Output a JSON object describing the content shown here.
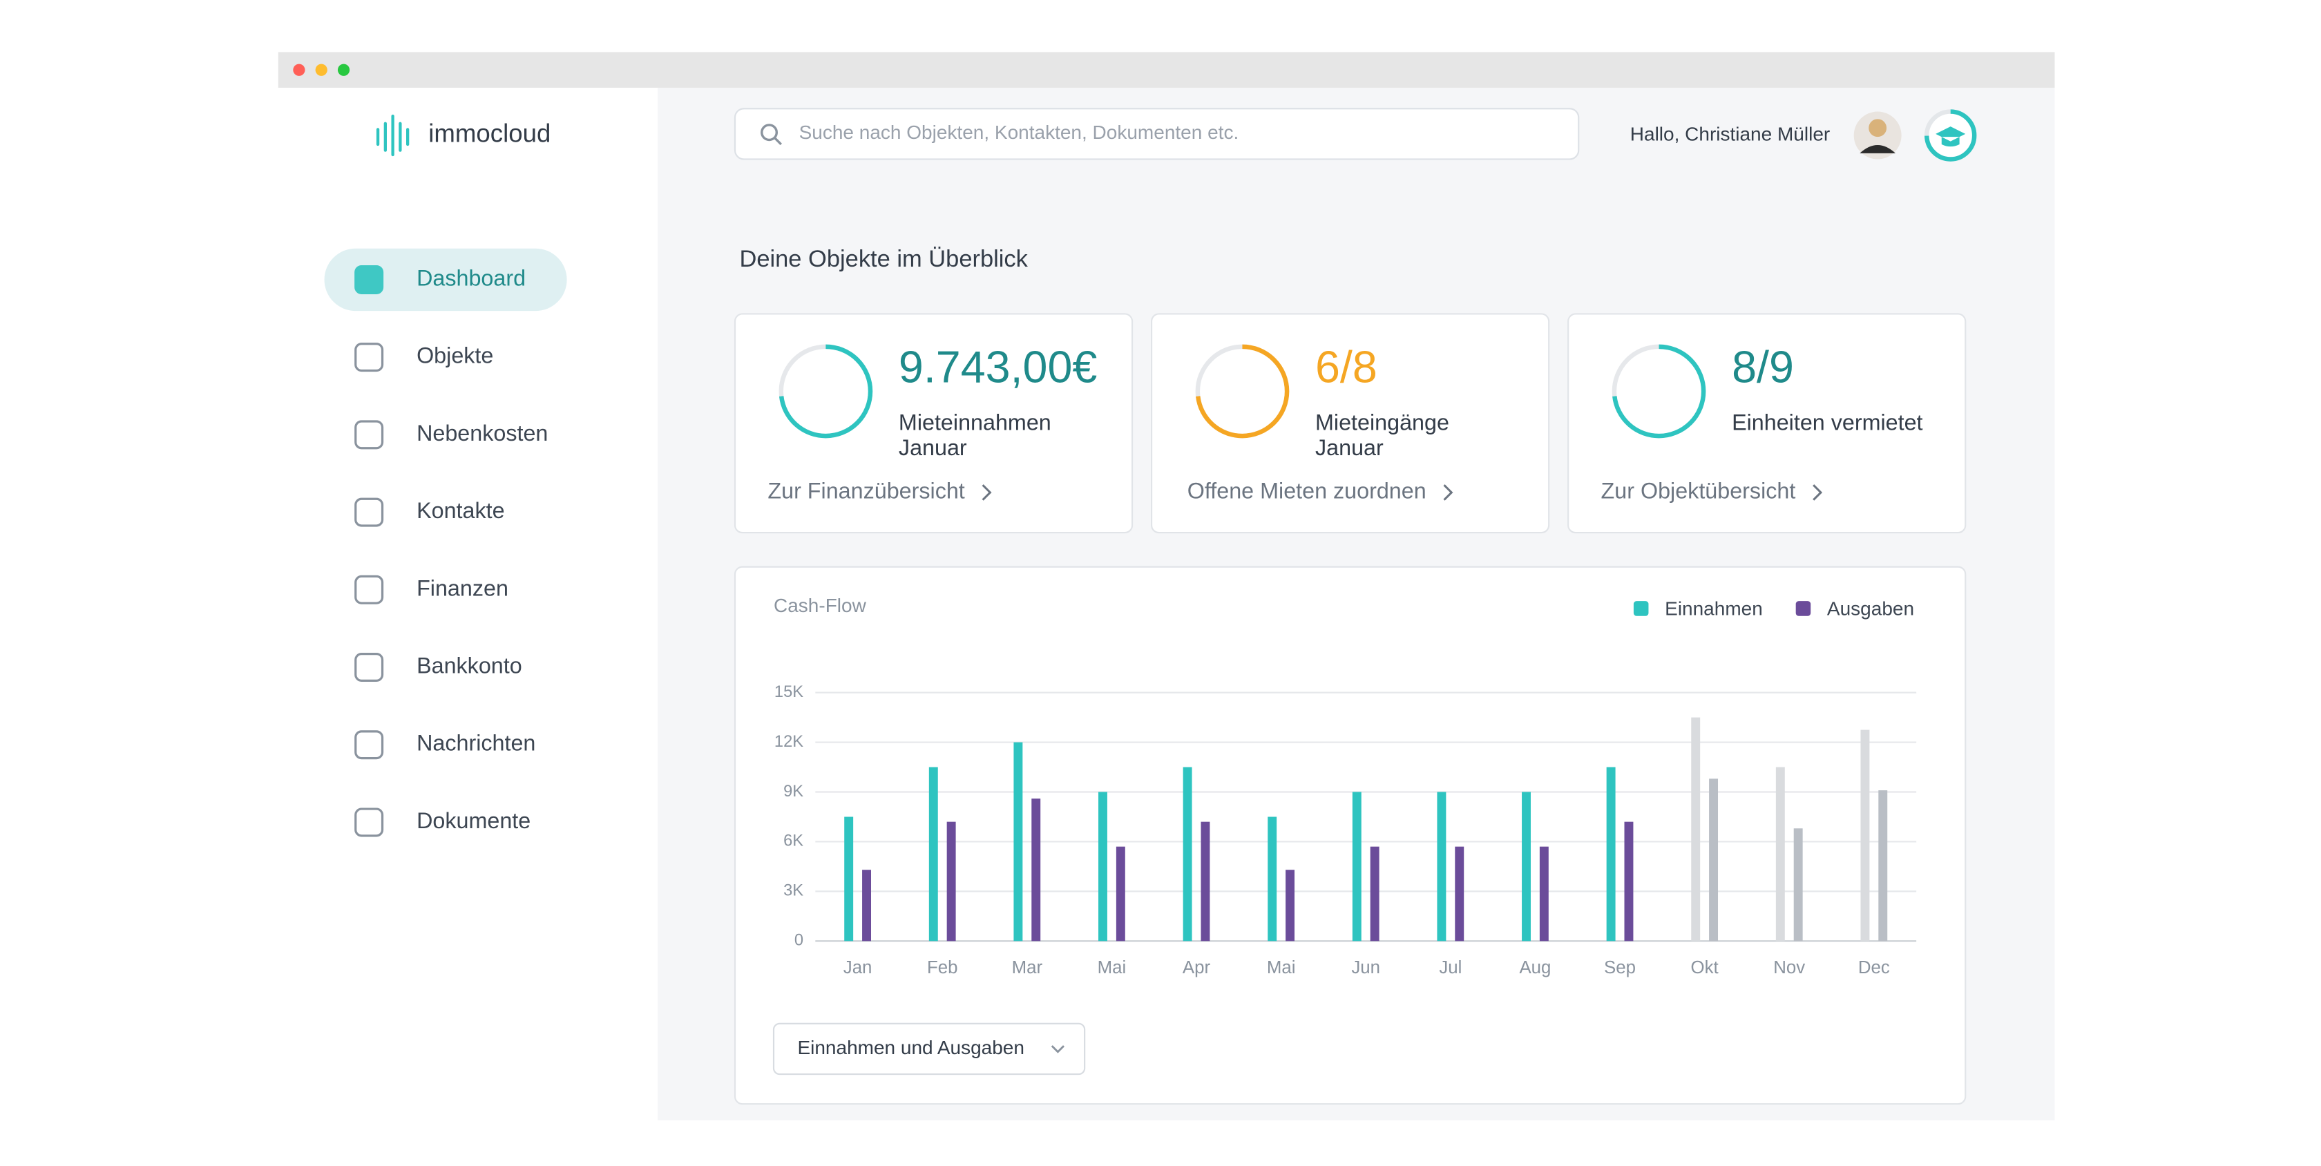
{
  "window": {
    "app_name": "immocloud",
    "search_placeholder": "Suche nach Objekten, Kontakten, Dokumenten etc.",
    "greeting": "Hallo, Christiane Müller"
  },
  "nav": [
    {
      "label": "Dashboard",
      "active": true
    },
    {
      "label": "Objekte",
      "active": false
    },
    {
      "label": "Nebenkosten",
      "active": false
    },
    {
      "label": "Kontakte",
      "active": false
    },
    {
      "label": "Finanzen",
      "active": false
    },
    {
      "label": "Bankkonto",
      "active": false
    },
    {
      "label": "Nachrichten",
      "active": false
    },
    {
      "label": "Dokumente",
      "active": false
    }
  ],
  "heading": "Deine Objekte im Überblick",
  "cards": [
    {
      "value": "9.743,00€",
      "value_color": "#1f8a8a",
      "ring_color": "#2ec4c0",
      "label_lines": [
        "Mieteinnahmen",
        "Januar"
      ],
      "link": "Zur Finanzübersicht"
    },
    {
      "value": "6/8",
      "value_color": "#f5a623",
      "ring_color": "#f5a623",
      "label_lines": [
        "Mieteingänge",
        "Januar"
      ],
      "link": "Offene Mieten zuordnen"
    },
    {
      "value": "8/9",
      "value_color": "#1f8a8a",
      "ring_color": "#2ec4c0",
      "label_lines": [
        "Einheiten vermietet"
      ],
      "link": "Zur Objektübersicht"
    }
  ],
  "chart": {
    "type": "bar",
    "title": "Cash-Flow",
    "categories": [
      "Jan",
      "Feb",
      "Mar",
      "Mai",
      "Apr",
      "Mai",
      "Jun",
      "Jul",
      "Aug",
      "Sep",
      "Okt",
      "Nov",
      "Dec"
    ],
    "series": [
      {
        "name": "Einnahmen",
        "color": "#2ec4c0",
        "colors": [
          "#2ec4c0",
          "#2ec4c0",
          "#2ec4c0",
          "#2ec4c0",
          "#2ec4c0",
          "#2ec4c0",
          "#2ec4c0",
          "#2ec4c0",
          "#2ec4c0",
          "#2ec4c0",
          "#d9dbde",
          "#d9dbde",
          "#d9dbde"
        ],
        "values": [
          7500,
          10500,
          12000,
          9000,
          10500,
          7500,
          9000,
          9000,
          9000,
          10500,
          13500,
          10500,
          12750
        ]
      },
      {
        "name": "Ausgaben",
        "color": "#6b4c9a",
        "colors": [
          "#6b4c9a",
          "#6b4c9a",
          "#6b4c9a",
          "#6b4c9a",
          "#6b4c9a",
          "#6b4c9a",
          "#6b4c9a",
          "#6b4c9a",
          "#6b4c9a",
          "#6b4c9a",
          "#b9bec5",
          "#b9bec5",
          "#b9bec5"
        ],
        "values": [
          4300,
          7200,
          8600,
          5700,
          7200,
          4300,
          5700,
          5700,
          5700,
          7200,
          9800,
          6800,
          9100
        ]
      }
    ],
    "ylim": [
      0,
      15000
    ],
    "yticks": [
      0,
      {
        "value": 3000,
        "label": "3K"
      },
      {
        "value": 6000,
        "label": "6K"
      },
      {
        "value": 9000,
        "label": "9K"
      },
      {
        "value": 12000,
        "label": "12K"
      },
      {
        "value": 15000,
        "label": "15K"
      }
    ],
    "grid": true,
    "dropdown": "Einnahmen und Ausgaben"
  }
}
